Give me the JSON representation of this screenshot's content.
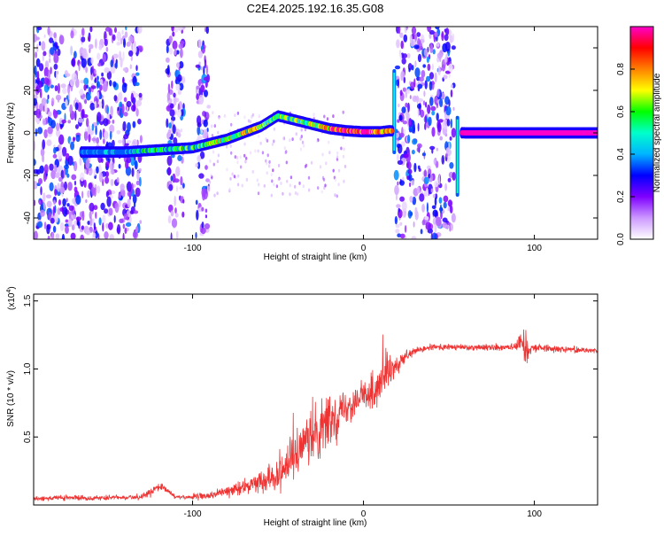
{
  "title": "C2E4.2025.192.16.35.G08",
  "chart_data": [
    {
      "type": "heatmap",
      "xlabel": "Height of straight line (km)",
      "ylabel": "Frequency (Hz)",
      "xlim": [
        -193,
        137
      ],
      "ylim": [
        -50,
        50
      ],
      "xticks": [
        "-100",
        "0",
        "100"
      ],
      "xtick_values": [
        -100,
        0,
        100
      ],
      "yticks": [
        "-40",
        "-20",
        "0",
        "20",
        "40"
      ],
      "ytick_values": [
        -40,
        -20,
        0,
        20,
        40
      ],
      "colorbar": {
        "label": "Normalized spectral amplitude",
        "range": [
          0,
          1
        ],
        "ticks": [
          "0.0",
          "0.2",
          "0.4",
          "0.6",
          "0.8"
        ],
        "tick_values": [
          0.0,
          0.2,
          0.4,
          0.6,
          0.8
        ],
        "colormap": [
          "#ffffff",
          "#cc99ff",
          "#7f00ff",
          "#0000ff",
          "#00b4ff",
          "#00ffcc",
          "#00ff00",
          "#ffff00",
          "#ff8000",
          "#ff0000",
          "#ff00cc"
        ]
      },
      "ridge": {
        "x": [
          -160,
          -140,
          -120,
          -100,
          -80,
          -60,
          -50,
          -40,
          -30,
          -20,
          -10,
          0,
          10,
          15,
          60,
          137
        ],
        "y": [
          -9,
          -9,
          -8,
          -7,
          -3,
          3,
          8,
          6,
          4,
          2,
          1,
          0.5,
          0.5,
          1,
          0,
          0
        ],
        "amplitude": [
          0.2,
          0.3,
          0.45,
          0.5,
          0.6,
          0.65,
          0.5,
          0.55,
          0.6,
          0.8,
          0.9,
          0.9,
          0.9,
          0.7,
          1.0,
          1.0
        ]
      },
      "noise_bands": [
        [
          -193,
          -130
        ],
        [
          -115,
          -105
        ],
        [
          -98,
          -90
        ],
        [
          19,
          53
        ]
      ],
      "vertical_streaks": [
        [
          18,
          -10,
          30
        ],
        [
          55,
          -30,
          8
        ]
      ],
      "grid": false
    },
    {
      "type": "line",
      "xlabel": "Height of straight line (km)",
      "ylabel": "SNR (10 * v/v)",
      "y_multiplier": "(x10",
      "y_multiplier_exp": "4",
      "y_multiplier_close": ")",
      "xlim": [
        -193,
        137
      ],
      "ylim": [
        0,
        15500
      ],
      "xticks": [
        "-100",
        "0",
        "100"
      ],
      "xtick_values": [
        -100,
        0,
        100
      ],
      "yticks": [
        "0.5",
        "1.0",
        "1.5"
      ],
      "ytick_values": [
        5000,
        10000,
        15000
      ],
      "line_color": "#ee3333",
      "series": [
        {
          "x": [
            -193,
            -170,
            -150,
            -130,
            -125,
            -120,
            -115,
            -110,
            -100,
            -90,
            -80,
            -70,
            -60,
            -50,
            -45,
            -40,
            -35,
            -30,
            -25,
            -20,
            -15,
            -10,
            -5,
            0,
            5,
            10,
            15,
            20,
            25,
            30,
            40,
            50,
            60,
            70,
            80,
            90,
            93,
            95,
            97,
            100,
            110,
            120,
            137
          ],
          "y": [
            500,
            520,
            520,
            600,
            900,
            1300,
            1100,
            600,
            580,
            700,
            1000,
            1300,
            1800,
            2400,
            3000,
            3600,
            4200,
            5000,
            5600,
            6200,
            6800,
            7300,
            7700,
            8000,
            8300,
            8800,
            9600,
            10300,
            10900,
            11300,
            11600,
            11600,
            11600,
            11600,
            11600,
            11700,
            12000,
            11600,
            11500,
            11600,
            11500,
            11450,
            11350
          ],
          "noise": [
            250,
            250,
            250,
            250,
            350,
            400,
            350,
            250,
            250,
            350,
            500,
            700,
            900,
            1700,
            2200,
            2400,
            2200,
            2600,
            2400,
            2200,
            2000,
            1800,
            1600,
            1400,
            1600,
            2000,
            1400,
            900,
            500,
            350,
            300,
            300,
            300,
            300,
            350,
            600,
            900,
            2200,
            700,
            400,
            300,
            300,
            250
          ]
        }
      ],
      "grid": false
    }
  ]
}
